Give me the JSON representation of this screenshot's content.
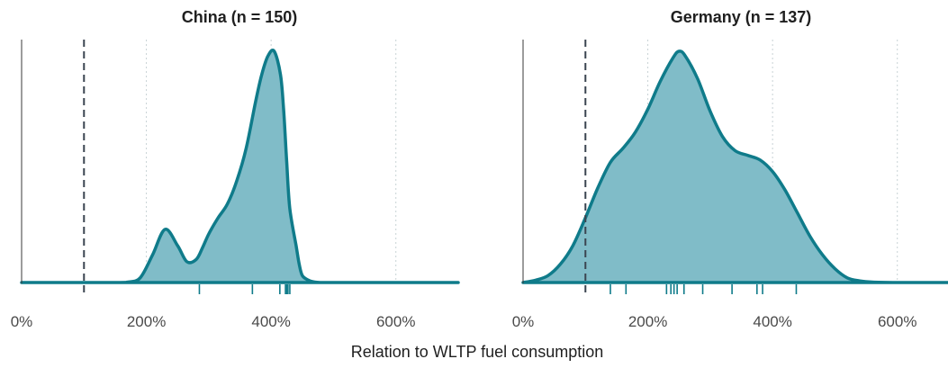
{
  "chart_data": [
    {
      "type": "area",
      "title": "China (n = 150)",
      "xlabel": "Relation to WLTP fuel consumption",
      "ylabel": "",
      "xlim": [
        0,
        700
      ],
      "x_ticks": [
        0,
        200,
        400,
        600
      ],
      "x_tick_labels": [
        "0%",
        "200%",
        "400%",
        "600%"
      ],
      "grid": "vertical dotted at 200%, 400%, 600%",
      "reference_line": {
        "x": 100,
        "style": "dashed"
      },
      "density_peak_at": 423,
      "series": [
        {
          "x": [
            0,
            150,
            170,
            190,
            210,
            230,
            250,
            265,
            280,
            290,
            300,
            315,
            330,
            345,
            360,
            375,
            385,
            395,
            405,
            415,
            420,
            425,
            430,
            440,
            445,
            450,
            460,
            470,
            480,
            500,
            520,
            560,
            600,
            700
          ],
          "y": [
            0,
            0,
            0.002,
            0.02,
            0.12,
            0.23,
            0.16,
            0.09,
            0.1,
            0.15,
            0.21,
            0.28,
            0.34,
            0.44,
            0.58,
            0.78,
            0.9,
            0.98,
            1,
            0.9,
            0.75,
            0.52,
            0.32,
            0.16,
            0.08,
            0.03,
            0.01,
            0.002,
            0,
            0,
            0,
            0,
            0,
            0
          ]
        }
      ],
      "rug": [
        285,
        370,
        414,
        423,
        425,
        427,
        430
      ]
    },
    {
      "type": "area",
      "title": "Germany (n = 137)",
      "xlabel": "Relation to WLTP fuel consumption",
      "ylabel": "",
      "xlim": [
        0,
        700
      ],
      "x_ticks": [
        0,
        200,
        400,
        600
      ],
      "x_tick_labels": [
        "0%",
        "200%",
        "400%",
        "600%"
      ],
      "grid": "vertical dotted at 200%, 400%, 600%",
      "reference_line": {
        "x": 100,
        "style": "dashed"
      },
      "series": [
        {
          "x": [
            0,
            20,
            40,
            60,
            80,
            100,
            120,
            140,
            160,
            180,
            200,
            220,
            240,
            250,
            260,
            280,
            300,
            320,
            340,
            360,
            380,
            400,
            420,
            440,
            460,
            480,
            500,
            520,
            540,
            560,
            600,
            650,
            700
          ],
          "y": [
            0,
            0.01,
            0.03,
            0.08,
            0.16,
            0.28,
            0.41,
            0.52,
            0.58,
            0.65,
            0.75,
            0.87,
            0.97,
            1,
            0.98,
            0.88,
            0.74,
            0.63,
            0.57,
            0.55,
            0.53,
            0.48,
            0.4,
            0.3,
            0.2,
            0.12,
            0.06,
            0.02,
            0.007,
            0.002,
            0,
            0,
            0
          ]
        }
      ],
      "rug": [
        140,
        165,
        230,
        237,
        242,
        247,
        258,
        288,
        335,
        375,
        384,
        438
      ]
    }
  ]
}
